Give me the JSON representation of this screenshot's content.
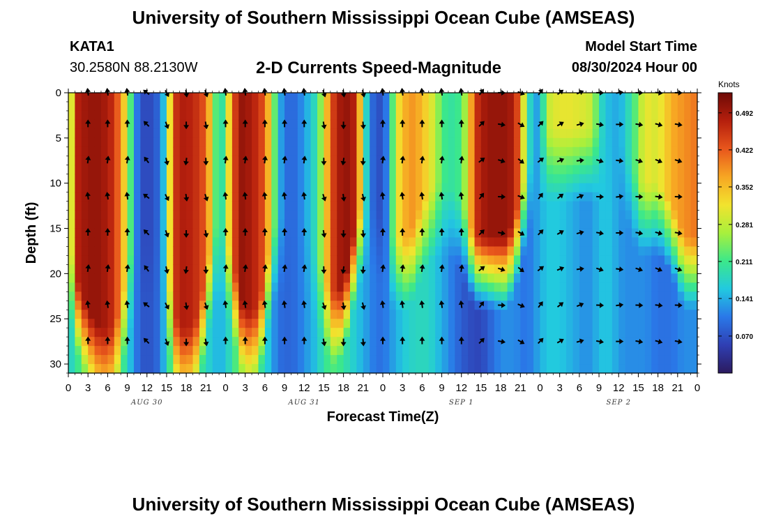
{
  "header": {
    "main_title": "University of Southern Mississippi Ocean Cube (AMSEAS)",
    "station": "KATA1",
    "coords": "30.2580N  88.2130W",
    "plot_title": "2-D Currents Speed-Magnitude",
    "model_label": "Model Start Time",
    "model_value": "08/30/2024 Hour 00"
  },
  "footer": {
    "repeat_title": "University of Southern Mississippi Ocean Cube (AMSEAS)"
  },
  "colors": {
    "colormap": [
      "#2b1a5e",
      "#2f3fb3",
      "#2a78e8",
      "#22c9e0",
      "#3ce88a",
      "#a8f03c",
      "#f2e32e",
      "#f7a623",
      "#e8561c",
      "#b51f0d",
      "#6e0a06"
    ]
  },
  "chart_data": {
    "type": "heatmap",
    "title": "2-D Currents Speed-Magnitude",
    "xlabel": "Forecast Time(Z)",
    "ylabel": "Depth (ft)",
    "x_tick_labels": [
      "0",
      "3",
      "6",
      "9",
      "12",
      "15",
      "18",
      "21",
      "0",
      "3",
      "6",
      "9",
      "12",
      "15",
      "18",
      "21",
      "0",
      "3",
      "6",
      "9",
      "12",
      "15",
      "18",
      "21",
      "0",
      "3",
      "6",
      "9",
      "12",
      "15",
      "18",
      "21",
      "0"
    ],
    "x_hours_range": [
      0,
      96
    ],
    "day_labels": [
      {
        "label": "AUG 30",
        "hour": 12
      },
      {
        "label": "AUG 31",
        "hour": 36
      },
      {
        "label": "SEP 1",
        "hour": 60
      },
      {
        "label": "SEP 2",
        "hour": 84
      }
    ],
    "y_ticks": [
      "0",
      "5",
      "10",
      "15",
      "20",
      "25",
      "30"
    ],
    "ylim": [
      0,
      31
    ],
    "colorbar": {
      "unit": "Knots",
      "ticks": [
        "0.492",
        "0.422",
        "0.352",
        "0.281",
        "0.211",
        "0.141",
        "0.070"
      ],
      "range": [
        0.0,
        0.53
      ]
    },
    "speed_profile_hours": [
      0,
      1,
      3,
      5,
      7,
      9,
      10,
      11,
      12,
      13,
      14,
      15,
      16,
      17,
      18,
      19,
      20,
      21,
      22,
      23,
      24,
      25,
      26,
      27,
      28,
      29,
      30,
      31,
      32,
      33,
      34,
      35,
      36,
      37,
      38,
      39,
      40,
      41,
      42,
      43,
      44,
      45,
      46,
      47,
      48,
      49,
      50,
      51,
      52,
      53,
      54,
      55,
      56,
      57,
      58,
      59,
      60,
      61,
      62,
      63,
      64,
      65,
      66,
      67,
      68,
      69,
      70,
      71,
      72,
      73,
      74,
      75,
      76,
      77,
      78,
      79,
      80,
      81,
      82,
      83,
      84,
      85,
      86,
      87,
      88,
      89,
      90,
      91,
      92,
      93,
      94,
      95,
      96
    ],
    "speed_top": [
      0.14,
      0.47,
      0.5,
      0.5,
      0.46,
      0.3,
      0.14,
      0.07,
      0.06,
      0.07,
      0.1,
      0.2,
      0.44,
      0.48,
      0.48,
      0.47,
      0.45,
      0.42,
      0.3,
      0.15,
      0.25,
      0.4,
      0.5,
      0.5,
      0.48,
      0.46,
      0.42,
      0.3,
      0.16,
      0.1,
      0.09,
      0.1,
      0.13,
      0.16,
      0.2,
      0.3,
      0.42,
      0.48,
      0.5,
      0.5,
      0.46,
      0.25,
      0.1,
      0.08,
      0.06,
      0.15,
      0.3,
      0.35,
      0.38,
      0.38,
      0.35,
      0.32,
      0.28,
      0.22,
      0.2,
      0.2,
      0.22,
      0.3,
      0.45,
      0.48,
      0.5,
      0.5,
      0.5,
      0.5,
      0.48,
      0.4,
      0.2,
      0.15,
      0.12,
      0.28,
      0.3,
      0.31,
      0.31,
      0.31,
      0.3,
      0.3,
      0.28,
      0.2,
      0.15,
      0.15,
      0.13,
      0.17,
      0.2,
      0.25,
      0.32,
      0.3,
      0.3,
      0.33,
      0.36,
      0.38,
      0.38,
      0.4,
      0.4
    ],
    "speed_bottom": [
      0.16,
      0.2,
      0.25,
      0.3,
      0.28,
      0.18,
      0.12,
      0.08,
      0.07,
      0.08,
      0.1,
      0.18,
      0.25,
      0.27,
      0.28,
      0.25,
      0.22,
      0.18,
      0.16,
      0.14,
      0.16,
      0.2,
      0.24,
      0.26,
      0.25,
      0.22,
      0.18,
      0.14,
      0.1,
      0.09,
      0.09,
      0.1,
      0.12,
      0.14,
      0.16,
      0.2,
      0.22,
      0.22,
      0.2,
      0.18,
      0.16,
      0.14,
      0.12,
      0.1,
      0.1,
      0.12,
      0.14,
      0.16,
      0.17,
      0.18,
      0.18,
      0.18,
      0.16,
      0.14,
      0.12,
      0.1,
      0.08,
      0.07,
      0.06,
      0.06,
      0.08,
      0.1,
      0.12,
      0.12,
      0.12,
      0.11,
      0.1,
      0.12,
      0.14,
      0.16,
      0.16,
      0.16,
      0.15,
      0.14,
      0.13,
      0.12,
      0.13,
      0.15,
      0.16,
      0.15,
      0.13,
      0.12,
      0.12,
      0.12,
      0.12,
      0.11,
      0.1,
      0.1,
      0.1,
      0.11,
      0.12,
      0.12,
      0.12
    ],
    "speed_decay_depth": [
      20,
      24,
      28,
      30,
      30,
      24,
      20,
      20,
      20,
      20,
      20,
      22,
      28,
      30,
      30,
      30,
      28,
      24,
      20,
      18,
      20,
      22,
      26,
      28,
      28,
      28,
      24,
      20,
      18,
      18,
      18,
      18,
      18,
      20,
      22,
      24,
      26,
      26,
      25,
      22,
      18,
      16,
      16,
      16,
      18,
      20,
      20,
      20,
      20,
      18,
      16,
      15,
      14,
      14,
      14,
      15,
      16,
      18,
      20,
      20,
      20,
      20,
      20,
      20,
      18,
      16,
      12,
      10,
      9,
      8,
      8,
      8,
      8,
      8,
      8,
      8,
      8,
      8,
      8,
      8,
      9,
      10,
      12,
      14,
      14,
      14,
      14,
      15,
      16,
      18,
      20,
      20,
      20
    ],
    "vector_hours": [
      0,
      3,
      6,
      9,
      12,
      15,
      18,
      21,
      24,
      27,
      30,
      33,
      36,
      39,
      42,
      45,
      48,
      51,
      54,
      57,
      60,
      63,
      66,
      69,
      72,
      75,
      78,
      81,
      84,
      87,
      90,
      93,
      96
    ],
    "vector_depths": [
      0,
      3.5,
      7.5,
      11.5,
      15.5,
      19.5,
      23.5,
      27.5
    ],
    "vector_direction_deg": [
      0,
      0,
      0,
      0,
      -45,
      160,
      180,
      170,
      0,
      0,
      0,
      0,
      0,
      170,
      180,
      175,
      0,
      0,
      0,
      0,
      0,
      45,
      100,
      120,
      45,
      60,
      75,
      100,
      90,
      100,
      105,
      100,
      90
    ]
  }
}
